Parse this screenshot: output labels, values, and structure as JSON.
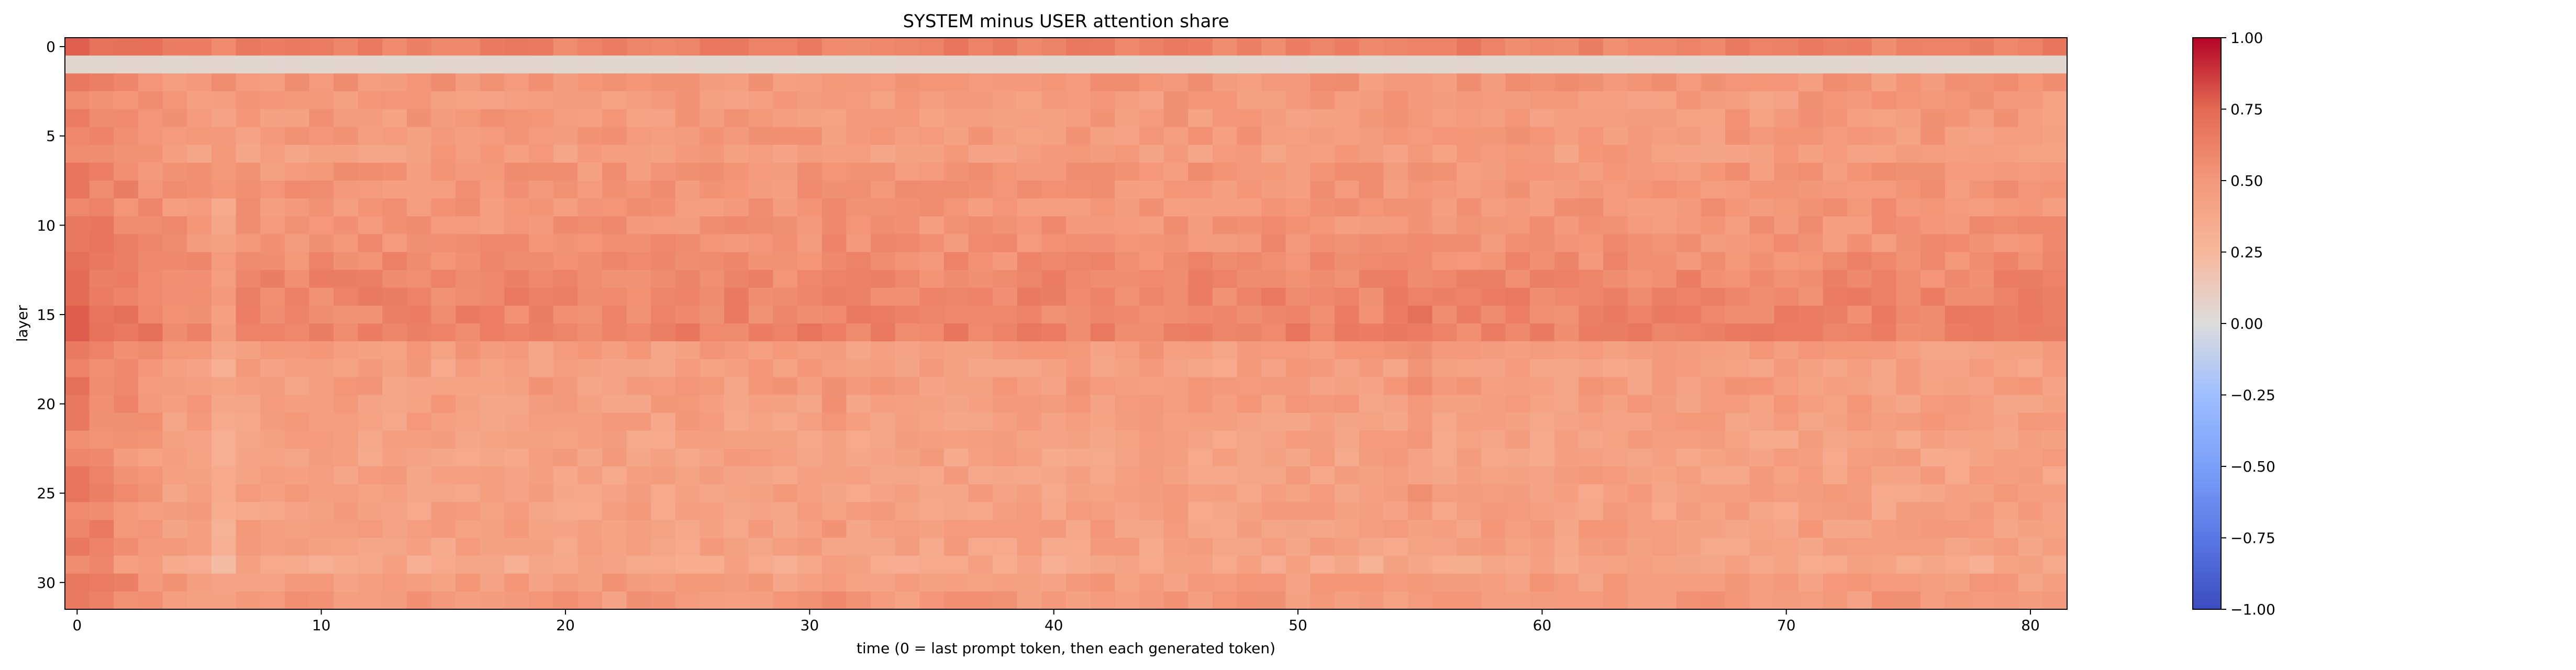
{
  "chart_data": {
    "type": "heatmap",
    "title": "SYSTEM minus USER attention share",
    "xlabel": "time (0 = last prompt token, then each generated token)",
    "ylabel": "layer",
    "n_x": 82,
    "n_layers": 32,
    "xlim": [
      0,
      81
    ],
    "ylim": [
      0,
      31
    ],
    "x_ticks": [
      "0",
      "10",
      "20",
      "30",
      "40",
      "50",
      "60",
      "70",
      "80"
    ],
    "y_ticks": [
      "0",
      "5",
      "10",
      "15",
      "20",
      "25",
      "30"
    ],
    "colorbar": {
      "colormap": "coolwarm",
      "vmin": -1.0,
      "vmax": 1.0,
      "ticks": [
        "1.00",
        "0.75",
        "0.50",
        "0.25",
        "0.00",
        "−0.25",
        "−0.50",
        "−0.75",
        "−1.00"
      ]
    },
    "layer_mean_values": [
      0.62,
      0.05,
      0.5,
      0.47,
      0.48,
      0.48,
      0.45,
      0.5,
      0.51,
      0.51,
      0.52,
      0.53,
      0.56,
      0.58,
      0.6,
      0.6,
      0.62,
      0.46,
      0.44,
      0.46,
      0.45,
      0.44,
      0.42,
      0.42,
      0.43,
      0.43,
      0.43,
      0.44,
      0.42,
      0.37,
      0.46,
      0.48
    ],
    "left_edge_boost": [
      0.22,
      0.18,
      0.12,
      0.06
    ],
    "column_offsets": [
      {
        "x": 6,
        "value": -0.1
      },
      {
        "x": 31,
        "value": 0.04
      },
      {
        "x": 55,
        "value": 0.05
      }
    ],
    "cell_noise": 0.07
  }
}
